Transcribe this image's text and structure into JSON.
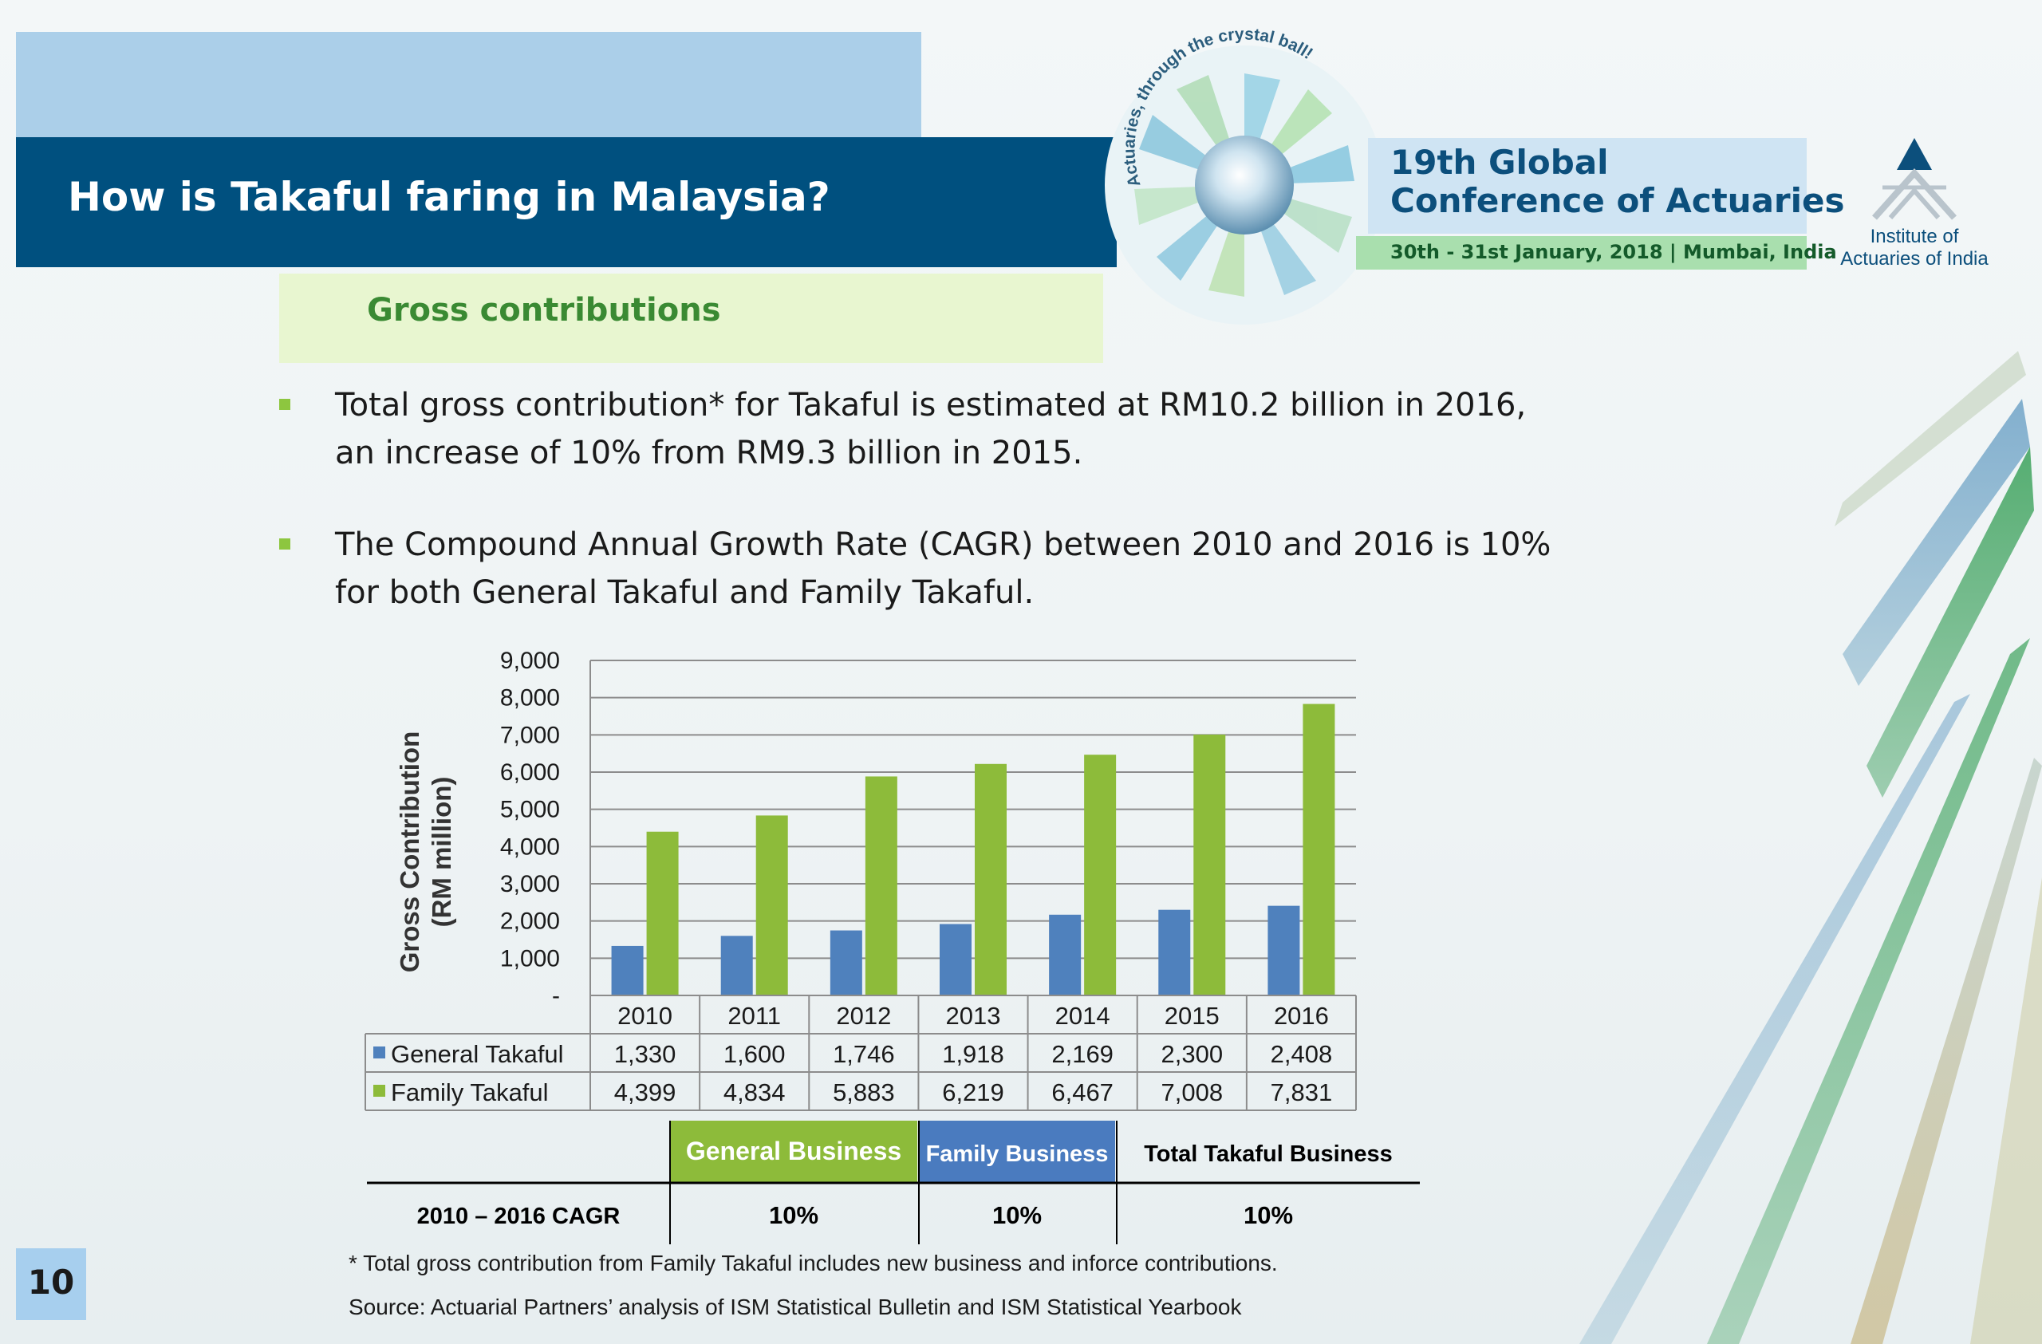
{
  "slide": {
    "title": "How is Takaful faring in Malaysia?",
    "subtitle": "Gross contributions",
    "page_number": "10"
  },
  "conference": {
    "line1": "19th Global",
    "line2": "Conference of Actuaries",
    "date_place": "30th - 31st January, 2018 | Mumbai, India",
    "tagline": "Actuaries, through the crystal ball!"
  },
  "institute": {
    "line1": "Institute of",
    "line2": "Actuaries of India"
  },
  "bullets": [
    {
      "line1": "Total gross contribution* for Takaful is estimated at RM10.2 billion in 2016,",
      "line2": "an increase of 10% from RM9.3 billion in 2015."
    },
    {
      "line1": "The Compound Annual Growth Rate (CAGR) between 2010 and 2016 is 10%",
      "line2": "for both General Takaful and Family Takaful."
    }
  ],
  "chart_data": {
    "type": "bar",
    "categories": [
      "2010",
      "2011",
      "2012",
      "2013",
      "2014",
      "2015",
      "2016"
    ],
    "series": [
      {
        "name": "General Takaful",
        "values": [
          1330,
          1600,
          1746,
          1918,
          2169,
          2300,
          2408
        ],
        "color": "#4f81bd",
        "labels": [
          "1,330",
          "1,600",
          "1,746",
          "1,918",
          "2,169",
          "2,300",
          "2,408"
        ]
      },
      {
        "name": "Family Takaful",
        "values": [
          4399,
          4834,
          5883,
          6219,
          6467,
          7008,
          7831
        ],
        "color": "#8dbb3a",
        "labels": [
          "4,399",
          "4,834",
          "5,883",
          "6,219",
          "6,467",
          "7,008",
          "7,831"
        ]
      }
    ],
    "ylabel_line1": "Gross Contribution",
    "ylabel_line2": "(RM million)",
    "ylim": [
      0,
      9000
    ],
    "yticks": [
      0,
      1000,
      2000,
      3000,
      4000,
      5000,
      6000,
      7000,
      8000,
      9000
    ],
    "ytick_labels": [
      "-",
      "1,000",
      "2,000",
      "3,000",
      "4,000",
      "5,000",
      "6,000",
      "7,000",
      "8,000",
      "9,000"
    ],
    "grid": true,
    "legend": "data-table"
  },
  "cagr_table": {
    "headers": [
      "General Business",
      "Family Business",
      "Total Takaful Business"
    ],
    "header_colors": [
      "#8dbb3a",
      "#4a7bbf",
      "#ffffff"
    ],
    "row_label": "2010 – 2016 CAGR",
    "values": [
      "10%",
      "10%",
      "10%"
    ]
  },
  "footnotes": {
    "note": "* Total gross contribution from Family Takaful includes new business and inforce contributions.",
    "source": "Source: Actuarial Partners’ analysis of ISM Statistical Bulletin and ISM Statistical Yearbook"
  }
}
